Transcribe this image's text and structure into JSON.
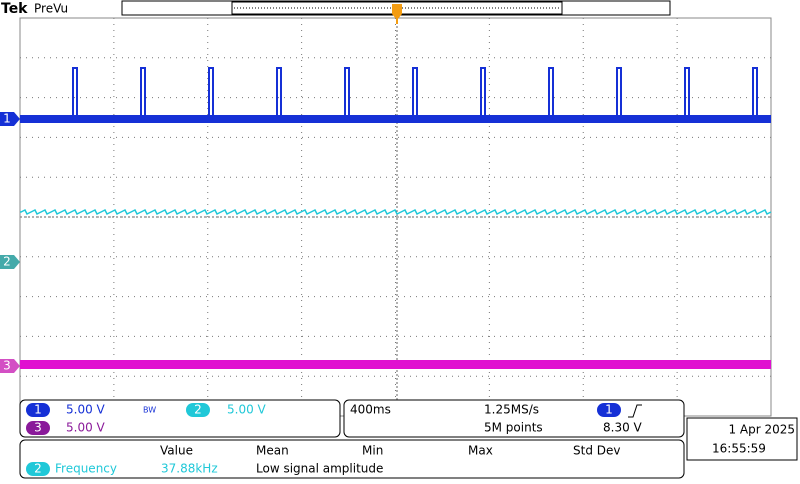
{
  "header": {
    "brand": "Tek",
    "mode": "PreVu"
  },
  "channel_markers": [
    "1",
    "2",
    "3"
  ],
  "readouts": {
    "ch1": {
      "label": "1",
      "scale": "5.00 V",
      "bw": "BW"
    },
    "ch2": {
      "label": "2",
      "scale": "5.00 V"
    },
    "ch3": {
      "label": "3",
      "scale": "5.00 V"
    }
  },
  "timebase": {
    "scale": "400ms",
    "sample_rate": "1.25MS/s",
    "points": "5M points",
    "trigger_source": "1",
    "trigger_level": "8.30 V"
  },
  "datetime": {
    "date": "1 Apr 2025",
    "time": "16:55:59"
  },
  "measurements": {
    "headers": [
      "Value",
      "Mean",
      "Min",
      "Max",
      "Std Dev"
    ],
    "rows": [
      {
        "channel": "2",
        "name": "Frequency",
        "value": "37.88kHz",
        "status": "Low signal amplitude"
      }
    ]
  }
}
